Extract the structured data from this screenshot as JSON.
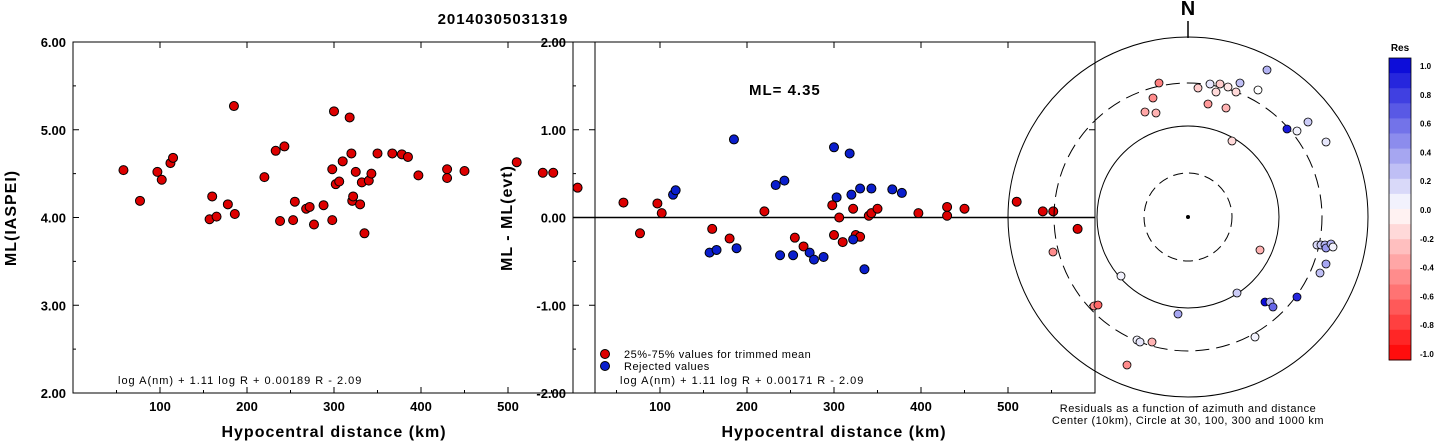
{
  "title": "20140305031319",
  "colors": {
    "accepted": "#dd0000",
    "rejected": "#0a1ecc",
    "marker_edge": "#000000"
  },
  "chart_data": [
    {
      "type": "scatter",
      "name": "ml-vs-distance",
      "xlabel": "Hypocentral distance (km)",
      "ylabel": "ML(IASPEI)",
      "xlim": [
        0,
        600
      ],
      "ylim": [
        2.0,
        6.0
      ],
      "xticks": [
        "100",
        "200",
        "300",
        "400",
        "500"
      ],
      "yticks": [
        "2.00",
        "3.00",
        "4.00",
        "5.00",
        "6.00"
      ],
      "formula": "log A(nm) + 1.11 log R + 0.00189 R - 2.09",
      "points": [
        [
          58,
          4.54
        ],
        [
          77,
          4.19
        ],
        [
          97,
          4.52
        ],
        [
          102,
          4.43
        ],
        [
          112,
          4.62
        ],
        [
          115,
          4.68
        ],
        [
          157,
          3.98
        ],
        [
          160,
          4.24
        ],
        [
          165,
          4.01
        ],
        [
          178,
          4.15
        ],
        [
          185,
          5.27
        ],
        [
          186,
          4.04
        ],
        [
          220,
          4.46
        ],
        [
          233,
          4.76
        ],
        [
          238,
          3.96
        ],
        [
          243,
          4.81
        ],
        [
          253,
          3.97
        ],
        [
          255,
          4.18
        ],
        [
          268,
          4.1
        ],
        [
          272,
          4.12
        ],
        [
          277,
          3.92
        ],
        [
          288,
          4.14
        ],
        [
          298,
          3.97
        ],
        [
          298,
          4.55
        ],
        [
          300,
          5.21
        ],
        [
          302,
          4.38
        ],
        [
          306,
          4.41
        ],
        [
          310,
          4.64
        ],
        [
          318,
          5.14
        ],
        [
          320,
          4.73
        ],
        [
          321,
          4.19
        ],
        [
          322,
          4.24
        ],
        [
          325,
          4.52
        ],
        [
          330,
          4.15
        ],
        [
          332,
          4.4
        ],
        [
          335,
          3.82
        ],
        [
          340,
          4.42
        ],
        [
          343,
          4.5
        ],
        [
          350,
          4.73
        ],
        [
          367,
          4.73
        ],
        [
          378,
          4.72
        ],
        [
          385,
          4.69
        ],
        [
          397,
          4.48
        ],
        [
          430,
          4.55
        ],
        [
          430,
          4.45
        ],
        [
          450,
          4.53
        ],
        [
          510,
          4.63
        ],
        [
          540,
          4.51
        ],
        [
          552,
          4.51
        ],
        [
          580,
          4.34
        ]
      ]
    },
    {
      "type": "scatter",
      "name": "residual-vs-distance",
      "xlabel": "Hypocentral distance (km)",
      "ylabel": "ML - ML(evt)",
      "xlim": [
        0,
        600
      ],
      "ylim": [
        -2.0,
        2.0
      ],
      "xticks": [
        "100",
        "200",
        "300",
        "400",
        "500"
      ],
      "yticks": [
        "-2.00",
        "-1.00",
        "0.00",
        "1.00",
        "2.00"
      ],
      "ml_label": "ML= 4.35",
      "formula": "log A(nm) + 1.11 log R + 0.00171 R - 2.09",
      "legend": {
        "placement": "bottom-left",
        "accepted": "25%-75% values for trimmed mean",
        "rejected": "Rejected values"
      },
      "accepted": [
        [
          58,
          0.17
        ],
        [
          77,
          -0.18
        ],
        [
          97,
          0.16
        ],
        [
          102,
          0.05
        ],
        [
          160,
          -0.13
        ],
        [
          180,
          -0.24
        ],
        [
          220,
          0.07
        ],
        [
          255,
          -0.23
        ],
        [
          265,
          -0.33
        ],
        [
          298,
          0.14
        ],
        [
          300,
          -0.2
        ],
        [
          306,
          0.0
        ],
        [
          310,
          -0.28
        ],
        [
          322,
          0.1
        ],
        [
          325,
          -0.2
        ],
        [
          330,
          -0.22
        ],
        [
          340,
          0.02
        ],
        [
          343,
          0.05
        ],
        [
          350,
          0.1
        ],
        [
          397,
          0.05
        ],
        [
          430,
          0.12
        ],
        [
          430,
          0.02
        ],
        [
          450,
          0.1
        ],
        [
          510,
          0.18
        ],
        [
          540,
          0.07
        ],
        [
          552,
          0.07
        ],
        [
          580,
          -0.13
        ]
      ],
      "rejected": [
        [
          115,
          0.26
        ],
        [
          118,
          0.31
        ],
        [
          157,
          -0.4
        ],
        [
          165,
          -0.37
        ],
        [
          185,
          0.89
        ],
        [
          188,
          -0.35
        ],
        [
          233,
          0.37
        ],
        [
          238,
          -0.43
        ],
        [
          243,
          0.42
        ],
        [
          253,
          -0.43
        ],
        [
          272,
          -0.4
        ],
        [
          277,
          -0.48
        ],
        [
          288,
          -0.45
        ],
        [
          300,
          0.8
        ],
        [
          303,
          0.23
        ],
        [
          318,
          0.73
        ],
        [
          320,
          0.26
        ],
        [
          322,
          -0.25
        ],
        [
          330,
          0.33
        ],
        [
          335,
          -0.59
        ],
        [
          343,
          0.33
        ],
        [
          367,
          0.32
        ],
        [
          378,
          0.28
        ]
      ]
    },
    {
      "type": "scatter",
      "name": "azimuth-distance-residuals",
      "north_label": "N",
      "caption_line1": "Residuals as a function of azimuth and distance",
      "caption_line2": "Center (10km), Circle at 30, 100, 300 and 1000 km",
      "colorbar_title": "Res",
      "colorbar_ticks": [
        "1.0",
        "0.8",
        "0.6",
        "0.4",
        "0.2",
        "0.0",
        "-0.2",
        "-0.4",
        "-0.6",
        "-0.8",
        "-1.0"
      ],
      "ring_distances_km": [
        10,
        30,
        100,
        300,
        1000
      ],
      "stations": [
        [
          1159,
          83,
          -0.5
        ],
        [
          1153,
          98,
          -0.45
        ],
        [
          1145,
          112,
          -0.35
        ],
        [
          1156,
          113,
          -0.3
        ],
        [
          1198,
          88,
          -0.2
        ],
        [
          1210,
          84,
          0.1
        ],
        [
          1220,
          84,
          -0.2
        ],
        [
          1228,
          87,
          -0.1
        ],
        [
          1240,
          83,
          0.25
        ],
        [
          1216,
          92,
          -0.15
        ],
        [
          1236,
          92,
          -0.15
        ],
        [
          1208,
          104,
          -0.4
        ],
        [
          1226,
          108,
          -0.3
        ],
        [
          1258,
          90,
          0.0
        ],
        [
          1267,
          70,
          0.3
        ],
        [
          1287,
          129,
          0.9
        ],
        [
          1297,
          131,
          0.05
        ],
        [
          1308,
          122,
          0.2
        ],
        [
          1232,
          141,
          -0.15
        ],
        [
          1326,
          142,
          0.1
        ],
        [
          1053,
          252,
          -0.45
        ],
        [
          1121,
          276,
          0.05
        ],
        [
          1094,
          306,
          -0.45
        ],
        [
          1098,
          305,
          -0.6
        ],
        [
          1137,
          340,
          0.05
        ],
        [
          1140,
          342,
          0.1
        ],
        [
          1152,
          342,
          -0.3
        ],
        [
          1127,
          365,
          -0.45
        ],
        [
          1178,
          314,
          0.35
        ],
        [
          1260,
          250,
          -0.3
        ],
        [
          1237,
          293,
          0.2
        ],
        [
          1265,
          302,
          0.95
        ],
        [
          1270,
          302,
          0.3
        ],
        [
          1273,
          307,
          0.6
        ],
        [
          1297,
          297,
          0.85
        ],
        [
          1255,
          337,
          0.05
        ],
        [
          1317,
          245,
          0.15
        ],
        [
          1321,
          245,
          0.2
        ],
        [
          1325,
          245,
          0.3
        ],
        [
          1326,
          248,
          0.4
        ],
        [
          1331,
          244,
          0.3
        ],
        [
          1333,
          247,
          0.05
        ],
        [
          1326,
          264,
          0.35
        ],
        [
          1320,
          273,
          0.25
        ]
      ]
    }
  ]
}
